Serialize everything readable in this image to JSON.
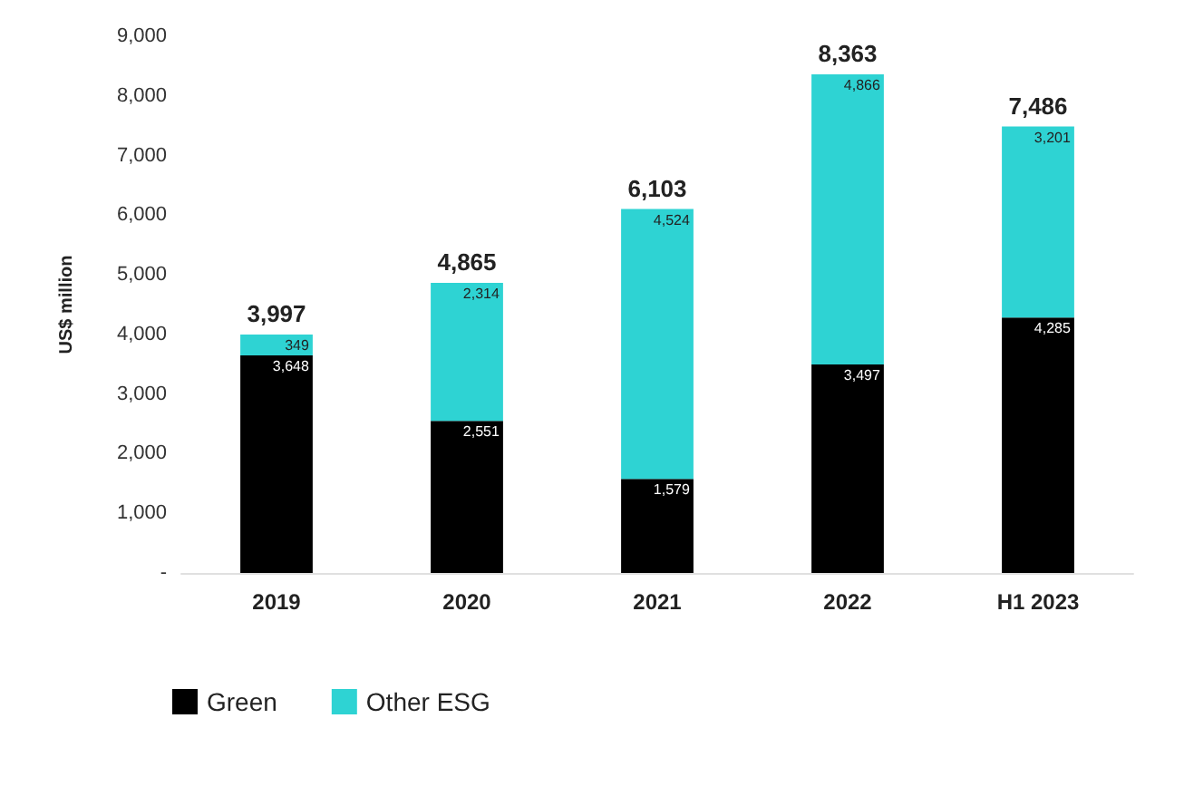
{
  "chart_data": {
    "type": "bar",
    "ylabel": "US$ million",
    "categories": [
      "2019",
      "2020",
      "2021",
      "2022",
      "H1 2023"
    ],
    "series": [
      {
        "name": "Green",
        "color": "#000000",
        "values": [
          3648,
          2551,
          1579,
          3497,
          4285
        ],
        "value_labels": [
          "3,648",
          "2,551",
          "1,579",
          "3,497",
          "4,285"
        ]
      },
      {
        "name": "Other ESG",
        "color": "#2ed3d3",
        "values": [
          349,
          2314,
          4524,
          4866,
          3201
        ],
        "value_labels": [
          "349",
          "2,314",
          "4,524",
          "4,866",
          "3,201"
        ]
      }
    ],
    "stacked": true,
    "totals": [
      "3,997",
      "4,865",
      "6,103",
      "8,363",
      "7,486"
    ],
    "ylim": [
      0,
      9000
    ],
    "yticks": [
      {
        "value": 0,
        "label": "-"
      },
      {
        "value": 1000,
        "label": "1,000"
      },
      {
        "value": 2000,
        "label": "2,000"
      },
      {
        "value": 3000,
        "label": "3,000"
      },
      {
        "value": 4000,
        "label": "4,000"
      },
      {
        "value": 5000,
        "label": "5,000"
      },
      {
        "value": 6000,
        "label": "6,000"
      },
      {
        "value": 7000,
        "label": "7,000"
      },
      {
        "value": 8000,
        "label": "8,000"
      },
      {
        "value": 9000,
        "label": "9,000"
      }
    ],
    "grid": false,
    "legend": "bottom left"
  }
}
